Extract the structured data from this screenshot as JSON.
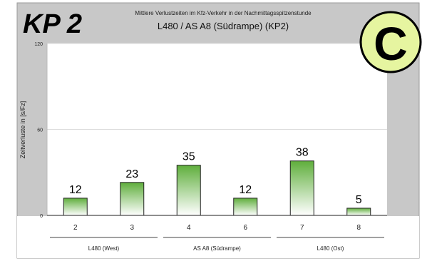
{
  "header": {
    "kp_label": "KP 2",
    "subtitle": "Mittlere Verlustzeiten im Kfz-Verkehr in der Nachmittagsspitzenstunde",
    "title": "L480 / AS A8 (Südrampe) (KP2)",
    "badge": "C"
  },
  "colors": {
    "background": "#c8c8c8",
    "plot_area": "#ffffff",
    "bar_top": "#5fae3c",
    "bar_bottom": "#ffffff",
    "badge_fill": "#e6f5a0"
  },
  "chart_data": {
    "type": "bar",
    "title": "L480 / AS A8 (Südrampe) (KP2)",
    "ylabel": "Zeitverluste in [s/Fz]",
    "xlabel": "",
    "ylim": [
      0,
      120
    ],
    "yticks": [
      "0",
      "60",
      "120"
    ],
    "categories": [
      "2",
      "3",
      "4",
      "6",
      "7",
      "8"
    ],
    "values": [
      12,
      23,
      35,
      12,
      38,
      5
    ],
    "value_labels": [
      "12",
      "23",
      "35",
      "12",
      "38",
      "5"
    ],
    "groups": [
      {
        "label": "L480 (West)",
        "categories": [
          "2",
          "3"
        ]
      },
      {
        "label": "AS A8 (Südrampe)",
        "categories": [
          "4",
          "6"
        ]
      },
      {
        "label": "L480 (Ost)",
        "categories": [
          "7",
          "8"
        ]
      }
    ]
  }
}
